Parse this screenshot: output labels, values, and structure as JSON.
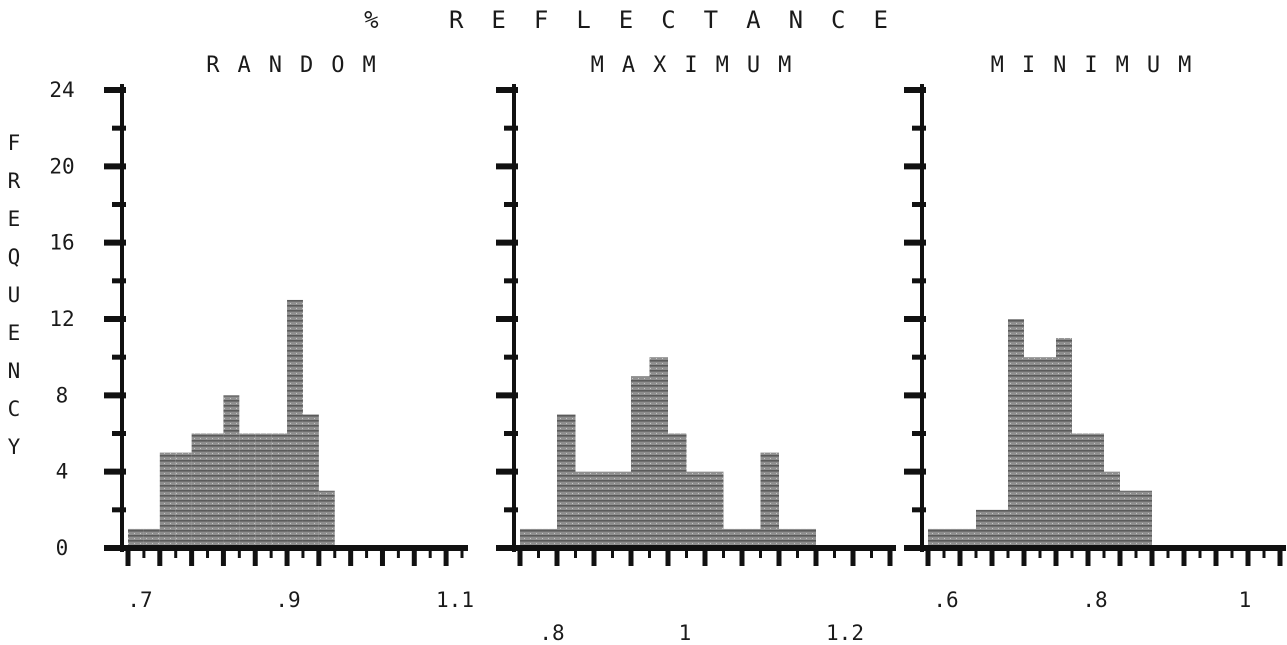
{
  "chart_data": {
    "title": "% REFLECTANCE",
    "ylabel": "FREQUENCY",
    "type": "bar",
    "y_ticks": [
      "0",
      "4",
      "8",
      "12",
      "16",
      "20",
      "24"
    ],
    "ylim": [
      0,
      24
    ],
    "bar_color": "#8a8a8a",
    "panels": [
      {
        "title": "RANDOM",
        "x_ticks": [
          ".7",
          ".9",
          "1.1"
        ],
        "xlim": [
          0.68,
          1.1
        ],
        "bin_width": 0.02,
        "bins": [
          {
            "x": 0.69,
            "v": 1
          },
          {
            "x": 0.71,
            "v": 1
          },
          {
            "x": 0.73,
            "v": 5
          },
          {
            "x": 0.75,
            "v": 5
          },
          {
            "x": 0.77,
            "v": 6
          },
          {
            "x": 0.79,
            "v": 6
          },
          {
            "x": 0.81,
            "v": 8
          },
          {
            "x": 0.83,
            "v": 6
          },
          {
            "x": 0.85,
            "v": 6
          },
          {
            "x": 0.87,
            "v": 6
          },
          {
            "x": 0.89,
            "v": 13
          },
          {
            "x": 0.91,
            "v": 7
          },
          {
            "x": 0.93,
            "v": 3
          }
        ]
      },
      {
        "title": "MAXIMUM",
        "x_ticks": [
          ".8",
          "1",
          "1.2"
        ],
        "xlim": [
          0.8,
          1.3
        ],
        "bin_width": 0.025,
        "bins": [
          {
            "x": 0.8125,
            "v": 1
          },
          {
            "x": 0.8375,
            "v": 1
          },
          {
            "x": 0.8625,
            "v": 7
          },
          {
            "x": 0.8875,
            "v": 4
          },
          {
            "x": 0.9125,
            "v": 4
          },
          {
            "x": 0.9375,
            "v": 4
          },
          {
            "x": 0.9625,
            "v": 9
          },
          {
            "x": 0.9875,
            "v": 10
          },
          {
            "x": 1.0125,
            "v": 6
          },
          {
            "x": 1.0375,
            "v": 4
          },
          {
            "x": 1.0625,
            "v": 4
          },
          {
            "x": 1.0875,
            "v": 1
          },
          {
            "x": 1.1125,
            "v": 1
          },
          {
            "x": 1.1375,
            "v": 5
          },
          {
            "x": 1.1625,
            "v": 1
          },
          {
            "x": 1.1875,
            "v": 1
          }
        ]
      },
      {
        "title": "MINIMUM",
        "x_ticks": [
          ".6",
          ".8",
          "1"
        ],
        "xlim": [
          0.6,
          1.04
        ],
        "bin_width": 0.02,
        "bins": [
          {
            "x": 0.61,
            "v": 1
          },
          {
            "x": 0.63,
            "v": 1
          },
          {
            "x": 0.65,
            "v": 1
          },
          {
            "x": 0.67,
            "v": 2
          },
          {
            "x": 0.69,
            "v": 2
          },
          {
            "x": 0.71,
            "v": 12
          },
          {
            "x": 0.73,
            "v": 10
          },
          {
            "x": 0.75,
            "v": 10
          },
          {
            "x": 0.77,
            "v": 11
          },
          {
            "x": 0.79,
            "v": 6
          },
          {
            "x": 0.81,
            "v": 6
          },
          {
            "x": 0.83,
            "v": 4
          },
          {
            "x": 0.85,
            "v": 3
          },
          {
            "x": 0.87,
            "v": 3
          }
        ]
      }
    ]
  }
}
